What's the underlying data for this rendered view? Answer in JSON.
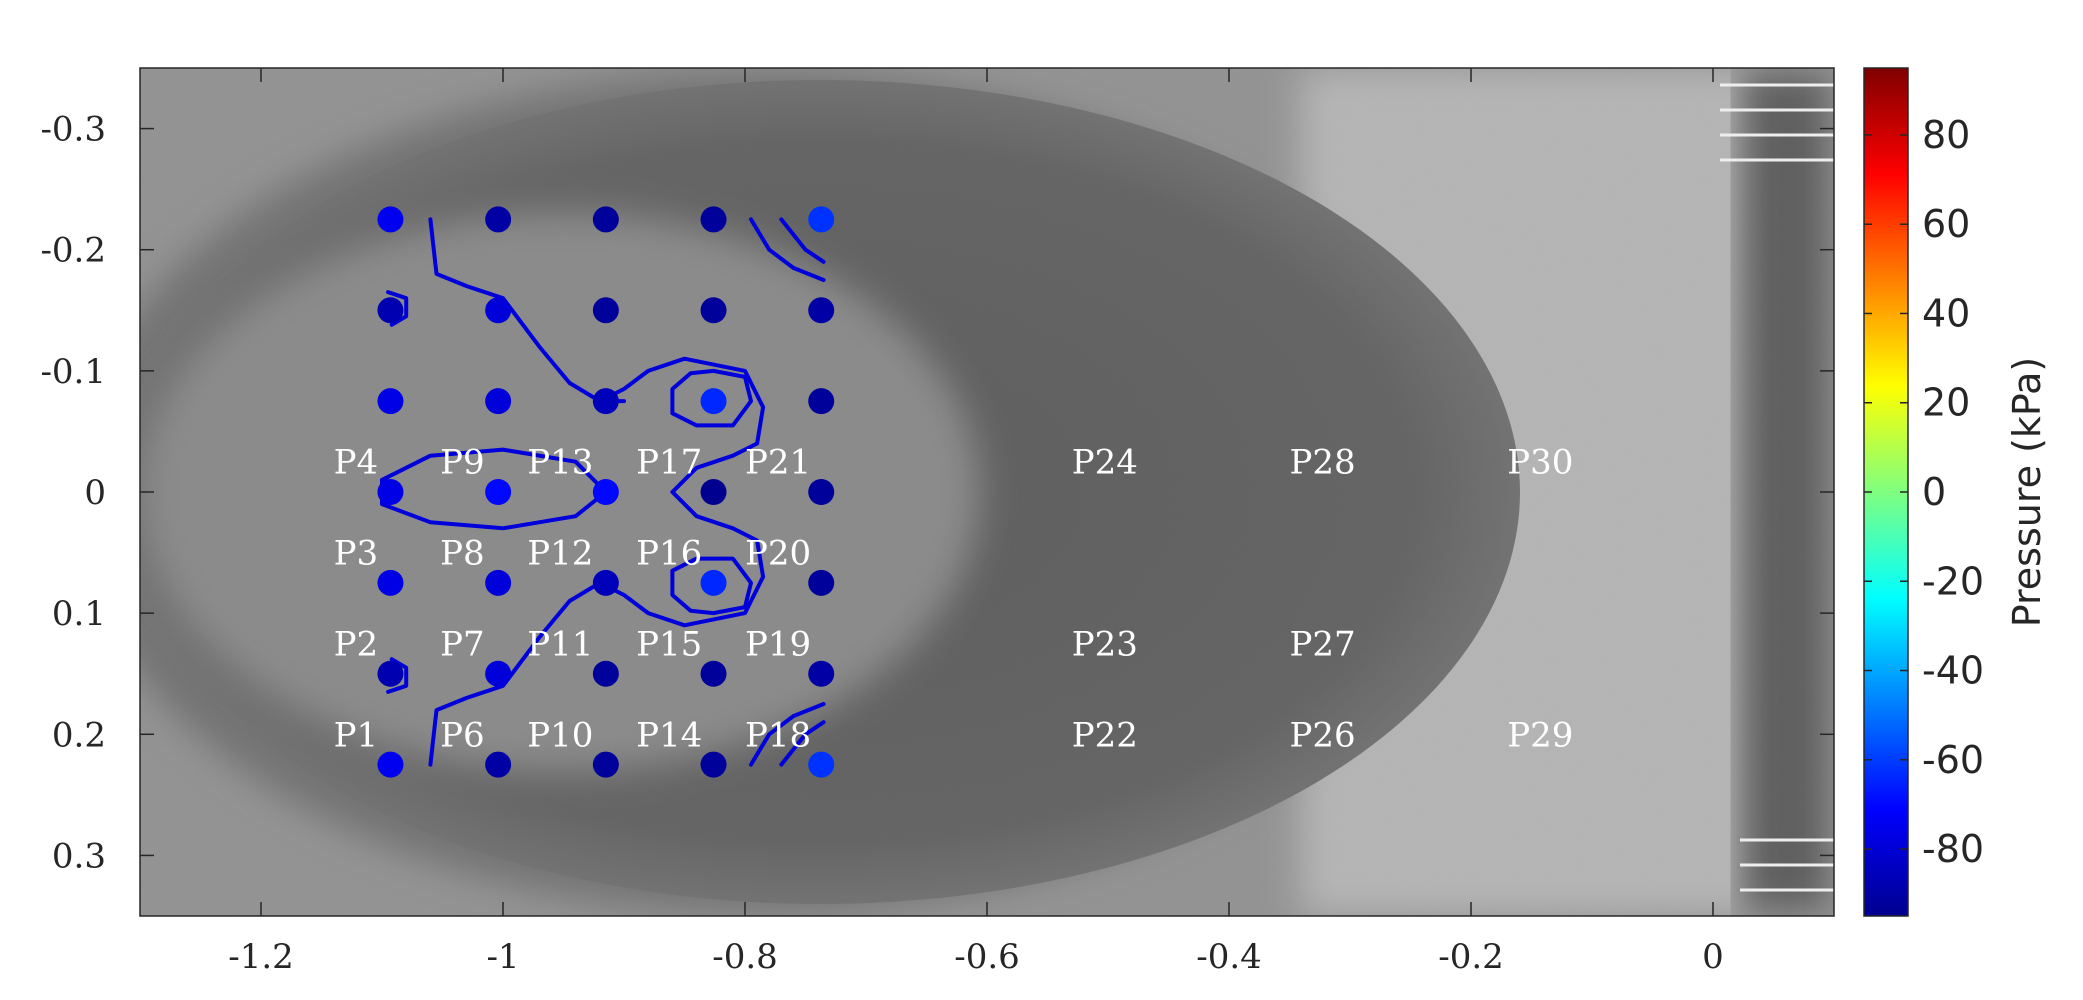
{
  "chart_data": {
    "type": "scatter",
    "title": "",
    "xlabel": "",
    "ylabel": "",
    "xlim": [
      -1.3,
      0.1
    ],
    "ylim": [
      0.35,
      -0.35
    ],
    "y_axis_reversed": true,
    "grid": false,
    "background": "grayscale photograph of elongated dark ellipse (flow field image)",
    "x_ticks": [
      -1.2,
      -1,
      -0.8,
      -0.6,
      -0.4,
      -0.2,
      0
    ],
    "x_tick_labels": [
      "-1.2",
      "-1",
      "-0.8",
      "-0.6",
      "-0.4",
      "-0.2",
      "0"
    ],
    "y_ticks": [
      -0.3,
      -0.2,
      -0.1,
      0,
      0.1,
      0.2,
      0.3
    ],
    "y_tick_labels": [
      "-0.3",
      "-0.2",
      "-0.1",
      "0",
      "0.1",
      "0.2",
      "0.3"
    ],
    "colorbar": {
      "label": "Pressure (kPa)",
      "range": [
        -95,
        95
      ],
      "ticks": [
        -80,
        -60,
        -40,
        -20,
        0,
        20,
        40,
        60,
        80
      ],
      "tick_labels": [
        "-80",
        "-60",
        "-40",
        "-20",
        "0",
        "20",
        "40",
        "60",
        "80"
      ],
      "colormap": "jet"
    },
    "points": [
      {
        "x": -1.093,
        "y": -0.225,
        "p": -74
      },
      {
        "x": -1.004,
        "y": -0.225,
        "p": -88
      },
      {
        "x": -0.915,
        "y": -0.225,
        "p": -90
      },
      {
        "x": -0.826,
        "y": -0.225,
        "p": -90
      },
      {
        "x": -0.737,
        "y": -0.225,
        "p": -62
      },
      {
        "x": -1.093,
        "y": -0.15,
        "p": -86
      },
      {
        "x": -1.004,
        "y": -0.15,
        "p": -78
      },
      {
        "x": -0.915,
        "y": -0.15,
        "p": -90
      },
      {
        "x": -0.826,
        "y": -0.15,
        "p": -90
      },
      {
        "x": -0.737,
        "y": -0.15,
        "p": -88
      },
      {
        "x": -1.093,
        "y": -0.075,
        "p": -76
      },
      {
        "x": -1.004,
        "y": -0.075,
        "p": -78
      },
      {
        "x": -0.915,
        "y": -0.075,
        "p": -84
      },
      {
        "x": -0.826,
        "y": -0.075,
        "p": -64
      },
      {
        "x": -0.737,
        "y": -0.075,
        "p": -90
      },
      {
        "x": -1.093,
        "y": 0,
        "p": -76
      },
      {
        "x": -1.004,
        "y": 0,
        "p": -70
      },
      {
        "x": -0.915,
        "y": 0,
        "p": -70
      },
      {
        "x": -0.826,
        "y": 0,
        "p": -92
      },
      {
        "x": -0.737,
        "y": 0,
        "p": -90
      },
      {
        "x": -1.093,
        "y": 0.075,
        "p": -76
      },
      {
        "x": -1.004,
        "y": 0.075,
        "p": -78
      },
      {
        "x": -0.915,
        "y": 0.075,
        "p": -84
      },
      {
        "x": -0.826,
        "y": 0.075,
        "p": -64
      },
      {
        "x": -0.737,
        "y": 0.075,
        "p": -90
      },
      {
        "x": -1.093,
        "y": 0.15,
        "p": -86
      },
      {
        "x": -1.004,
        "y": 0.15,
        "p": -78
      },
      {
        "x": -0.915,
        "y": 0.15,
        "p": -90
      },
      {
        "x": -0.826,
        "y": 0.15,
        "p": -90
      },
      {
        "x": -0.737,
        "y": 0.15,
        "p": -88
      },
      {
        "x": -1.093,
        "y": 0.225,
        "p": -74
      },
      {
        "x": -1.004,
        "y": 0.225,
        "p": -88
      },
      {
        "x": -0.915,
        "y": 0.225,
        "p": -90
      },
      {
        "x": -0.826,
        "y": 0.225,
        "p": -90
      },
      {
        "x": -0.737,
        "y": 0.225,
        "p": -62
      }
    ],
    "probe_labels": [
      {
        "text": "P4",
        "x": -1.14,
        "y": -0.025
      },
      {
        "text": "P9",
        "x": -1.052,
        "y": -0.025
      },
      {
        "text": "P13",
        "x": -0.98,
        "y": -0.025
      },
      {
        "text": "P17",
        "x": -0.89,
        "y": -0.025
      },
      {
        "text": "P21",
        "x": -0.8,
        "y": -0.025
      },
      {
        "text": "P24",
        "x": -0.53,
        "y": -0.025
      },
      {
        "text": "P28",
        "x": -0.35,
        "y": -0.025
      },
      {
        "text": "P30",
        "x": -0.17,
        "y": -0.025
      },
      {
        "text": "P3",
        "x": -1.14,
        "y": 0.05
      },
      {
        "text": "P8",
        "x": -1.052,
        "y": 0.05
      },
      {
        "text": "P12",
        "x": -0.98,
        "y": 0.05
      },
      {
        "text": "P16",
        "x": -0.89,
        "y": 0.05
      },
      {
        "text": "P20",
        "x": -0.8,
        "y": 0.05
      },
      {
        "text": "P2",
        "x": -1.14,
        "y": 0.125
      },
      {
        "text": "P7",
        "x": -1.052,
        "y": 0.125
      },
      {
        "text": "P11",
        "x": -0.98,
        "y": 0.125
      },
      {
        "text": "P15",
        "x": -0.89,
        "y": 0.125
      },
      {
        "text": "P19",
        "x": -0.8,
        "y": 0.125
      },
      {
        "text": "P23",
        "x": -0.53,
        "y": 0.125
      },
      {
        "text": "P27",
        "x": -0.35,
        "y": 0.125
      },
      {
        "text": "P1",
        "x": -1.14,
        "y": 0.2
      },
      {
        "text": "P6",
        "x": -1.052,
        "y": 0.2
      },
      {
        "text": "P10",
        "x": -0.98,
        "y": 0.2
      },
      {
        "text": "P14",
        "x": -0.89,
        "y": 0.2
      },
      {
        "text": "P18",
        "x": -0.8,
        "y": 0.2
      },
      {
        "text": "P22",
        "x": -0.53,
        "y": 0.2
      },
      {
        "text": "P26",
        "x": -0.35,
        "y": 0.2
      },
      {
        "text": "P29",
        "x": -0.17,
        "y": 0.2
      }
    ],
    "contours": [
      {
        "points": [
          [
            -1.06,
            -0.225
          ],
          [
            -1.055,
            -0.18
          ],
          [
            -1.03,
            -0.17
          ],
          [
            -1.0,
            -0.16
          ],
          [
            -0.97,
            -0.12
          ],
          [
            -0.945,
            -0.09
          ],
          [
            -0.92,
            -0.075
          ],
          [
            -0.9,
            -0.075
          ]
        ]
      },
      {
        "points": [
          [
            -0.92,
            -0.075
          ],
          [
            -0.9,
            -0.085
          ],
          [
            -0.88,
            -0.1
          ],
          [
            -0.85,
            -0.11
          ],
          [
            -0.8,
            -0.1
          ],
          [
            -0.785,
            -0.07
          ],
          [
            -0.79,
            -0.04
          ],
          [
            -0.81,
            -0.03
          ],
          [
            -0.84,
            -0.02
          ],
          [
            -0.86,
            0
          ],
          [
            -0.84,
            0.02
          ],
          [
            -0.81,
            0.03
          ],
          [
            -0.79,
            0.04
          ],
          [
            -0.785,
            0.07
          ],
          [
            -0.8,
            0.1
          ],
          [
            -0.85,
            0.11
          ],
          [
            -0.88,
            0.1
          ],
          [
            -0.9,
            0.085
          ],
          [
            -0.92,
            0.075
          ]
        ]
      },
      {
        "points": [
          [
            -0.92,
            0.075
          ],
          [
            -0.945,
            0.09
          ],
          [
            -0.97,
            0.12
          ],
          [
            -1.0,
            0.16
          ],
          [
            -1.03,
            0.17
          ],
          [
            -1.055,
            0.18
          ],
          [
            -1.06,
            0.225
          ]
        ]
      },
      {
        "points": [
          [
            -0.826,
            -0.1
          ],
          [
            -0.8,
            -0.095
          ],
          [
            -0.795,
            -0.075
          ],
          [
            -0.81,
            -0.055
          ],
          [
            -0.84,
            -0.055
          ],
          [
            -0.86,
            -0.065
          ],
          [
            -0.86,
            -0.085
          ],
          [
            -0.845,
            -0.098
          ],
          [
            -0.826,
            -0.1
          ]
        ]
      },
      {
        "points": [
          [
            -0.826,
            0.1
          ],
          [
            -0.8,
            0.095
          ],
          [
            -0.795,
            0.075
          ],
          [
            -0.81,
            0.055
          ],
          [
            -0.84,
            0.055
          ],
          [
            -0.86,
            0.065
          ],
          [
            -0.86,
            0.085
          ],
          [
            -0.845,
            0.098
          ],
          [
            -0.826,
            0.1
          ]
        ]
      },
      {
        "points": [
          [
            -1.1,
            -0.01
          ],
          [
            -1.06,
            -0.03
          ],
          [
            -1.0,
            -0.035
          ],
          [
            -0.94,
            -0.025
          ],
          [
            -0.915,
            0
          ],
          [
            -0.94,
            0.02
          ],
          [
            -1.0,
            0.03
          ],
          [
            -1.06,
            0.025
          ],
          [
            -1.1,
            0.01
          ],
          [
            -1.1,
            -0.01
          ]
        ]
      },
      {
        "points": [
          [
            -0.795,
            -0.225
          ],
          [
            -0.78,
            -0.2
          ],
          [
            -0.76,
            -0.185
          ],
          [
            -0.735,
            -0.175
          ]
        ]
      },
      {
        "points": [
          [
            -0.77,
            -0.225
          ],
          [
            -0.75,
            -0.2
          ],
          [
            -0.735,
            -0.19
          ]
        ]
      },
      {
        "points": [
          [
            -0.795,
            0.225
          ],
          [
            -0.78,
            0.2
          ],
          [
            -0.76,
            0.185
          ],
          [
            -0.735,
            0.175
          ]
        ]
      },
      {
        "points": [
          [
            -0.77,
            0.225
          ],
          [
            -0.75,
            0.2
          ],
          [
            -0.735,
            0.19
          ]
        ]
      },
      {
        "points": [
          [
            -1.095,
            -0.165
          ],
          [
            -1.08,
            -0.16
          ],
          [
            -1.08,
            -0.145
          ],
          [
            -1.092,
            -0.138
          ]
        ]
      },
      {
        "points": [
          [
            -1.095,
            0.165
          ],
          [
            -1.08,
            0.16
          ],
          [
            -1.08,
            0.145
          ],
          [
            -1.092,
            0.138
          ]
        ]
      }
    ]
  }
}
